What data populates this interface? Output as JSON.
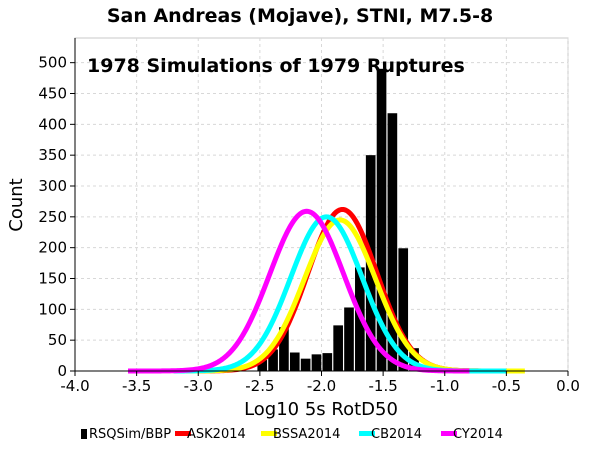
{
  "chart_data": {
    "type": "bar",
    "title": "San Andreas (Mojave), STNI, M7.5-8",
    "annotation": "1978 Simulations of 1979 Ruptures",
    "xlabel": "Log10 5s RotD50",
    "ylabel": "Count",
    "xlim": [
      -4.0,
      0.0
    ],
    "ylim": [
      0,
      540
    ],
    "x_ticks": [
      -4.0,
      -3.5,
      -3.0,
      -2.5,
      -2.0,
      -1.5,
      -1.0,
      -0.5,
      0.0
    ],
    "x_tick_labels": [
      "-4.0",
      "-3.5",
      "-3.0",
      "-2.5",
      "-2.0",
      "-1.5",
      "-1.0",
      "-0.5",
      "0.0"
    ],
    "y_ticks": [
      0,
      50,
      100,
      150,
      200,
      250,
      300,
      350,
      400,
      450,
      500
    ],
    "y_tick_labels": [
      "0",
      "50",
      "100",
      "150",
      "200",
      "250",
      "300",
      "350",
      "400",
      "450",
      "500"
    ],
    "grid": true,
    "legend_position": "bottom",
    "histogram": {
      "name": "RSQSim/BBP",
      "color": "#000000",
      "bin_width": 0.088,
      "bin_starts": [
        -2.52,
        -2.432,
        -2.344,
        -2.256,
        -2.168,
        -2.08,
        -1.992,
        -1.904,
        -1.816,
        -1.728,
        -1.64,
        -1.552,
        -1.464,
        -1.376,
        -1.288,
        -1.2
      ],
      "counts": [
        18,
        35,
        71,
        30,
        20,
        27,
        29,
        74,
        103,
        168,
        350,
        490,
        418,
        199,
        37,
        3
      ]
    },
    "series": [
      {
        "name": "ASK2014",
        "color": "#ff0000",
        "type": "normal-curve",
        "mean": -1.83,
        "sigma": 0.28,
        "peak": 262,
        "x_range": [
          -3.1,
          -0.7
        ]
      },
      {
        "name": "BSSA2014",
        "color": "#ffff00",
        "type": "normal-curve",
        "mean": -1.85,
        "sigma": 0.29,
        "peak": 245,
        "x_range": [
          -3.1,
          -0.35
        ]
      },
      {
        "name": "CB2014",
        "color": "#00ffff",
        "type": "normal-curve",
        "mean": -1.96,
        "sigma": 0.29,
        "peak": 250,
        "x_range": [
          -3.2,
          -0.5
        ]
      },
      {
        "name": "CY2014",
        "color": "#ff00ff",
        "type": "normal-curve",
        "mean": -2.12,
        "sigma": 0.3,
        "peak": 259,
        "x_range": [
          -3.57,
          -0.8
        ]
      }
    ]
  }
}
